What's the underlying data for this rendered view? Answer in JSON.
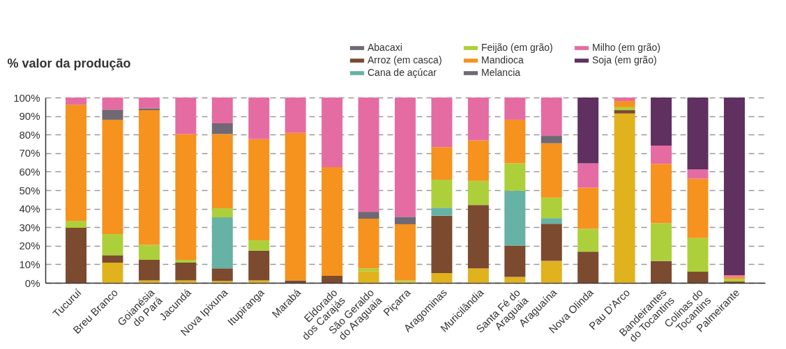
{
  "chart_data": {
    "type": "bar",
    "stacked": true,
    "ylabel": "% valor da produção",
    "categories": [
      "Tucuruí",
      "Breu Branco",
      "Goianésia\ndo Pará",
      "Jacundá",
      "Nova Ipixuna",
      "Itupiranga",
      "Marabá",
      "Eldorado\ndos Carajás",
      "São Geraldo\ndo Araguaia",
      "Piçarra",
      "Aragominas",
      "Muricilândia",
      "Santa Fé do\nAraguaia",
      "Araguaína",
      "Nova Olinda",
      "Pau D'Arco",
      "Bandeirantes\ndo Tocantins",
      "Colinas do\nTocantins",
      "Palmeirante"
    ],
    "series": [
      {
        "color": "#e0b21e",
        "values": [
          null,
          10.9,
          1.3,
          1.3,
          1.0,
          1.3,
          null,
          null,
          6.3,
          0.6,
          5.3,
          7.8,
          3.2,
          11.8,
          null,
          91.4,
          null,
          null,
          null
        ]
      },
      {
        "name": "Arroz (em casca)",
        "color": "#7b4a2f",
        "values": [
          29.7,
          4.0,
          11.1,
          9.6,
          6.8,
          16.1,
          1.3,
          3.8,
          null,
          null,
          30.9,
          34.2,
          16.9,
          20.1,
          16.8,
          1.8,
          11.8,
          6.0,
          0.7
        ]
      },
      {
        "name": "Cana de açúcar",
        "color": "#66b2a5",
        "values": [
          null,
          null,
          null,
          null,
          27.5,
          null,
          null,
          null,
          null,
          null,
          4.3,
          null,
          29.6,
          3.0,
          null,
          null,
          null,
          null,
          null
        ]
      },
      {
        "name": "Feijão (em grão)",
        "color": "#add03a",
        "values": [
          3.7,
          11.4,
          8.1,
          1.5,
          4.9,
          5.5,
          null,
          null,
          1.5,
          0.7,
          15.1,
          13.0,
          14.8,
          11.1,
          12.3,
          1.6,
          20.4,
          18.2,
          1.3
        ]
      },
      {
        "name": "Mandioca",
        "color": "#f6921e",
        "values": [
          62.7,
          61.7,
          72.7,
          67.9,
          40.1,
          54.6,
          79.6,
          58.6,
          26.8,
          30.3,
          17.6,
          21.9,
          23.5,
          29.3,
          22.2,
          3.3,
          32.0,
          32.0,
          1.2
        ]
      },
      {
        "name": "Abacaxi",
        "color": "#706873",
        "values": [
          null,
          5.5,
          1.0,
          null,
          5.8,
          null,
          null,
          null,
          3.7,
          4.0,
          null,
          null,
          null,
          4.0,
          null,
          null,
          null,
          null,
          null
        ]
      },
      {
        "name": "Melancia",
        "color": "#706873",
        "values": [
          null,
          null,
          null,
          null,
          null,
          null,
          null,
          null,
          null,
          null,
          null,
          null,
          null,
          null,
          null,
          null,
          null,
          null,
          null
        ]
      },
      {
        "name": "Milho (em grão)",
        "color": "#e56ca2",
        "values": [
          3.9,
          6.5,
          5.8,
          19.7,
          13.9,
          22.5,
          19.1,
          37.6,
          61.7,
          64.4,
          26.8,
          23.1,
          12.0,
          20.7,
          13.2,
          1.9,
          9.9,
          5.0,
          0.9
        ]
      },
      {
        "name": "Soja (em grão)",
        "color": "#5f3060",
        "values": [
          null,
          null,
          null,
          null,
          null,
          null,
          null,
          null,
          null,
          null,
          null,
          null,
          null,
          null,
          35.5,
          null,
          25.9,
          38.8,
          95.9
        ]
      }
    ],
    "ylim": [
      0,
      100
    ],
    "yticks": [
      {
        "value": 0,
        "label": "0%"
      },
      {
        "value": 10,
        "label": "10%"
      },
      {
        "value": 20,
        "label": "20%"
      },
      {
        "value": 30,
        "label": "30%"
      },
      {
        "value": 40,
        "label": "40%"
      },
      {
        "value": 50,
        "label": "50%"
      },
      {
        "value": 60,
        "label": "60%"
      },
      {
        "value": 70,
        "label": "70%"
      },
      {
        "value": 80,
        "label": "80%"
      },
      {
        "value": 90,
        "label": "90%"
      },
      {
        "value": 100,
        "label": "100%"
      }
    ],
    "grid": "y",
    "legend": "top right"
  }
}
